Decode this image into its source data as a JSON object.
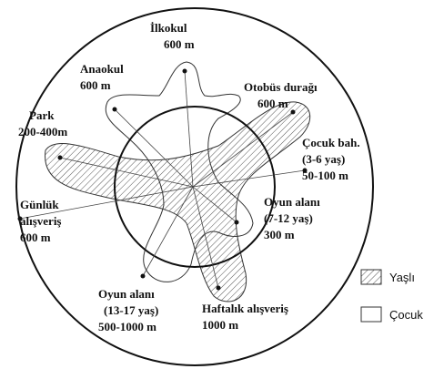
{
  "nodes": [
    {
      "lines": [
        "İlkokul",
        "600 m"
      ]
    },
    {
      "lines": [
        "Anaokul",
        "600 m"
      ]
    },
    {
      "lines": [
        "Otobüs durağı",
        "600 m"
      ]
    },
    {
      "lines": [
        "Park",
        "200-400m"
      ]
    },
    {
      "lines": [
        "Çocuk bah.",
        "(3-6 yaş)",
        "50-100 m"
      ]
    },
    {
      "lines": [
        "Günlük",
        "alışveriş",
        "600 m"
      ]
    },
    {
      "lines": [
        "Oyun alanı",
        "(7-12 yaş)",
        "300 m"
      ]
    },
    {
      "lines": [
        "Oyun alanı",
        "(13-17 yaş)",
        "500-1000 m"
      ]
    },
    {
      "lines": [
        "Haftalık alışveriş",
        "1000 m"
      ]
    }
  ],
  "legend": [
    {
      "label": "Yaşlı"
    },
    {
      "label": "Çocuk"
    }
  ]
}
